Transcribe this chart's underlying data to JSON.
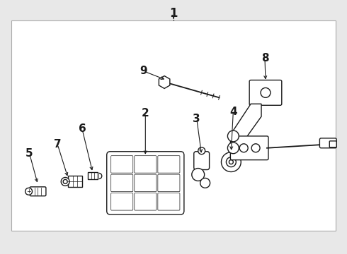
{
  "bg_color": "#e8e8e8",
  "box_bg": "#ffffff",
  "border_color": "#999999",
  "lc": "#1a1a1a",
  "lw": 1.0,
  "label_fontsize": 11,
  "label_fontweight": "bold",
  "fig_w": 4.9,
  "fig_h": 3.6,
  "dpi": 100
}
